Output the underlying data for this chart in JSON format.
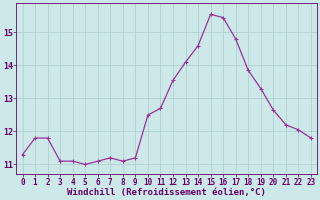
{
  "x": [
    0,
    1,
    2,
    3,
    4,
    5,
    6,
    7,
    8,
    9,
    10,
    11,
    12,
    13,
    14,
    15,
    16,
    17,
    18,
    19,
    20,
    21,
    22,
    23
  ],
  "y": [
    11.3,
    11.8,
    11.8,
    11.1,
    11.1,
    11.0,
    11.1,
    11.2,
    11.1,
    11.2,
    12.5,
    12.7,
    13.55,
    14.1,
    14.6,
    15.55,
    15.45,
    14.8,
    13.85,
    13.3,
    12.65,
    12.2,
    12.05,
    11.8
  ],
  "line_color": "#993399",
  "marker": "s",
  "marker_size": 2,
  "bg_color": "#cce8e8",
  "grid_color": "#aacccc",
  "xlabel": "Windchill (Refroidissement éolien,°C)",
  "ylabel": "",
  "ylim": [
    10.7,
    15.9
  ],
  "xlim": [
    -0.5,
    23.5
  ],
  "yticks": [
    11,
    12,
    13,
    14,
    15
  ],
  "xticks": [
    0,
    1,
    2,
    3,
    4,
    5,
    6,
    7,
    8,
    9,
    10,
    11,
    12,
    13,
    14,
    15,
    16,
    17,
    18,
    19,
    20,
    21,
    22,
    23
  ],
  "tick_color": "#660066",
  "label_color": "#660066",
  "font_size": 5.5,
  "xlabel_size": 6.5
}
